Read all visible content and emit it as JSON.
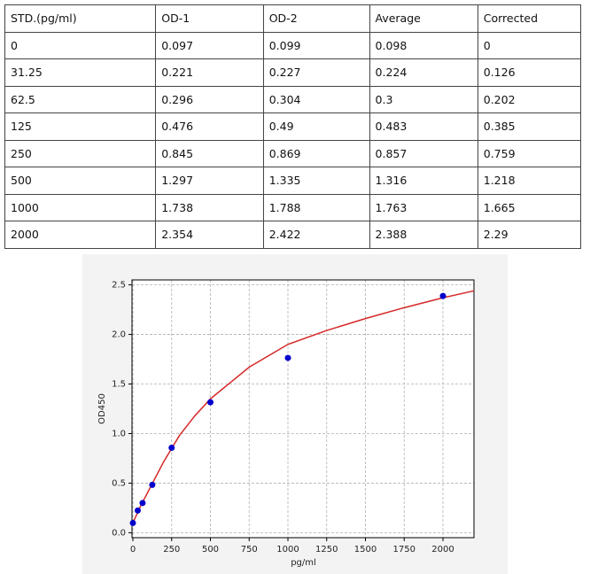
{
  "table": {
    "header": [
      "STD.(pg/ml)",
      "OD-1",
      "OD-2",
      "Average",
      "Corrected"
    ],
    "rows": [
      [
        "0",
        "0.097",
        "0.099",
        "0.098",
        "0"
      ],
      [
        "31.25",
        "0.221",
        "0.227",
        "0.224",
        "0.126"
      ],
      [
        "62.5",
        "0.296",
        "0.304",
        "0.3",
        "0.202"
      ],
      [
        "125",
        "0.476",
        "0.49",
        "0.483",
        "0.385"
      ],
      [
        "250",
        "0.845",
        "0.869",
        "0.857",
        "0.759"
      ],
      [
        "500",
        "1.297",
        "1.335",
        "1.316",
        "1.218"
      ],
      [
        "1000",
        "1.738",
        "1.788",
        "1.763",
        "1.665"
      ],
      [
        "2000",
        "2.354",
        "2.422",
        "2.388",
        "2.29"
      ]
    ]
  },
  "chart_data": {
    "type": "scatter",
    "x_label": "pg/ml",
    "y_label": "OD450",
    "x": [
      0,
      31.25,
      62.5,
      125,
      250,
      500,
      1000,
      2000
    ],
    "values": [
      0.098,
      0.224,
      0.3,
      0.483,
      0.857,
      1.316,
      1.763,
      2.388
    ],
    "color": "#0000cc",
    "fit": {
      "x": [
        0,
        50,
        100,
        200,
        300,
        400,
        500,
        750,
        1000,
        1250,
        1500,
        1750,
        2000,
        2200
      ],
      "values": [
        0.1,
        0.27,
        0.42,
        0.72,
        0.98,
        1.18,
        1.35,
        1.67,
        1.9,
        2.04,
        2.16,
        2.27,
        2.37,
        2.44
      ],
      "color": "#d62728"
    },
    "xlim": [
      0,
      2200
    ],
    "ylim": [
      -0.05,
      2.55
    ],
    "xticks": [
      0,
      250,
      500,
      750,
      1000,
      1250,
      1500,
      1750,
      2000
    ],
    "yticks": [
      {
        "value": 0,
        "label": "0.0"
      },
      {
        "value": 0.5,
        "label": "0.5"
      },
      {
        "value": 1,
        "label": "1.0"
      },
      {
        "value": 1.5,
        "label": "1.5"
      },
      {
        "value": 2,
        "label": "2.0"
      },
      {
        "value": 2.5,
        "label": "2.5"
      }
    ],
    "grid": true
  }
}
